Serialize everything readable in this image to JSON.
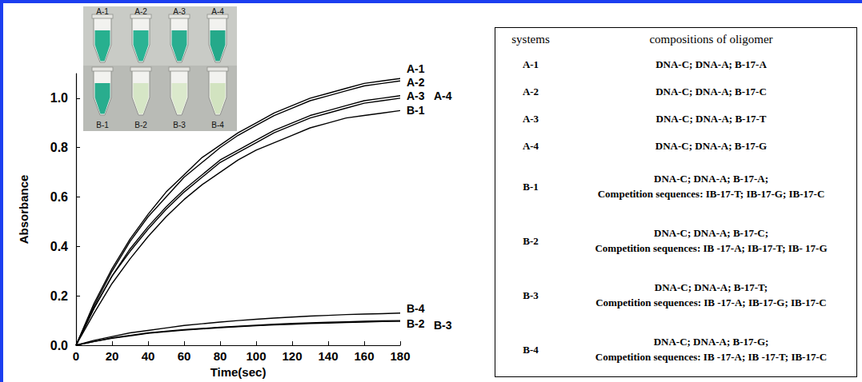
{
  "chart_data": {
    "type": "line",
    "x_label": "Time(sec)",
    "y_label": "Absorbance",
    "x": [
      0,
      10,
      20,
      30,
      40,
      50,
      60,
      70,
      80,
      90,
      100,
      110,
      120,
      130,
      140,
      150,
      160,
      170,
      180
    ],
    "series": [
      {
        "name": "A-1",
        "color": "#000000",
        "values": [
          0,
          0.17,
          0.31,
          0.43,
          0.53,
          0.62,
          0.69,
          0.76,
          0.81,
          0.86,
          0.9,
          0.94,
          0.97,
          1.0,
          1.02,
          1.04,
          1.06,
          1.07,
          1.08
        ]
      },
      {
        "name": "A-2",
        "color": "#000000",
        "values": [
          0,
          0.16,
          0.3,
          0.42,
          0.52,
          0.6,
          0.68,
          0.74,
          0.8,
          0.85,
          0.89,
          0.93,
          0.96,
          0.99,
          1.01,
          1.03,
          1.05,
          1.06,
          1.07
        ]
      },
      {
        "name": "A-3",
        "color": "#000000",
        "values": [
          0,
          0.15,
          0.28,
          0.39,
          0.48,
          0.56,
          0.63,
          0.69,
          0.75,
          0.79,
          0.83,
          0.87,
          0.9,
          0.93,
          0.95,
          0.97,
          0.99,
          1.0,
          1.01
        ]
      },
      {
        "name": "A-4",
        "color": "#000000",
        "values": [
          0,
          0.15,
          0.28,
          0.38,
          0.47,
          0.55,
          0.62,
          0.68,
          0.74,
          0.78,
          0.82,
          0.86,
          0.89,
          0.92,
          0.94,
          0.96,
          0.98,
          0.99,
          1.0
        ]
      },
      {
        "name": "B-1",
        "color": "#000000",
        "values": [
          0,
          0.13,
          0.25,
          0.35,
          0.44,
          0.52,
          0.59,
          0.65,
          0.7,
          0.75,
          0.79,
          0.82,
          0.85,
          0.88,
          0.9,
          0.92,
          0.93,
          0.94,
          0.95
        ]
      },
      {
        "name": "B-2",
        "color": "#000000",
        "values": [
          0,
          0.015,
          0.03,
          0.04,
          0.05,
          0.057,
          0.063,
          0.068,
          0.073,
          0.077,
          0.081,
          0.085,
          0.088,
          0.091,
          0.093,
          0.095,
          0.097,
          0.099,
          0.1
        ]
      },
      {
        "name": "B-3",
        "color": "#000000",
        "values": [
          0,
          0.015,
          0.028,
          0.038,
          0.048,
          0.055,
          0.061,
          0.066,
          0.071,
          0.075,
          0.079,
          0.082,
          0.085,
          0.088,
          0.09,
          0.092,
          0.094,
          0.096,
          0.097
        ]
      },
      {
        "name": "B-4",
        "color": "#000000",
        "values": [
          0,
          0.02,
          0.035,
          0.05,
          0.06,
          0.07,
          0.08,
          0.087,
          0.094,
          0.1,
          0.105,
          0.11,
          0.114,
          0.118,
          0.121,
          0.124,
          0.126,
          0.128,
          0.13
        ]
      }
    ],
    "xlim": [
      0,
      180
    ],
    "xticks": [
      0,
      20,
      40,
      60,
      80,
      100,
      120,
      140,
      160,
      180
    ],
    "ylim": [
      0,
      1.1
    ],
    "yticks": [
      {
        "value": 0,
        "label": "0.0"
      },
      0.2,
      0.4,
      0.6,
      0.8,
      {
        "value": 1,
        "label": "1.0"
      }
    ],
    "grid": false
  },
  "inset": {
    "tubes": [
      [
        {
          "label": "A-1",
          "color": "#27b08f"
        },
        {
          "label": "A-2",
          "color": "#2bb394"
        },
        {
          "label": "A-3",
          "color": "#2aae90"
        },
        {
          "label": "A-4",
          "color": "#25a98a"
        }
      ],
      [
        {
          "label": "B-1",
          "color": "#29ad8e"
        },
        {
          "label": "B-2",
          "color": "#d6e6c6"
        },
        {
          "label": "B-3",
          "color": "#dbe9cc"
        },
        {
          "label": "B-4",
          "color": "#d2e3c0"
        }
      ]
    ]
  },
  "table": {
    "header": [
      "systems",
      "compositions of oligomer"
    ],
    "rows": [
      {
        "system": "A-1",
        "composition": [
          "DNA-C; DNA-A; B-17-A"
        ]
      },
      {
        "system": "A-2",
        "composition": [
          "DNA-C; DNA-A; B-17-C"
        ]
      },
      {
        "system": "A-3",
        "composition": [
          "DNA-C; DNA-A; B-17-T"
        ]
      },
      {
        "system": "A-4",
        "composition": [
          "DNA-C; DNA-A; B-17-G"
        ]
      },
      {
        "system": "B-1",
        "composition": [
          "DNA-C; DNA-A; B-17-A;",
          "Competition sequences: IB-17-T; IB-17-G; IB-17-C"
        ]
      },
      {
        "system": "B-2",
        "composition": [
          "DNA-C; DNA-A; B-17-C;",
          "Competition sequences: IB -17-A; IB-17-T; IB- 17-G"
        ]
      },
      {
        "system": "B-3",
        "composition": [
          "DNA-C; DNA-A; B-17-T;",
          "Competition sequences: IB -17-A; IB-17-G; IB-17-C"
        ]
      },
      {
        "system": "B-4",
        "composition": [
          "DNA-C; DNA-A; B-17-G;",
          "Competition sequences: IB -17-A; IB -17-T; IB-17-C"
        ]
      }
    ]
  }
}
